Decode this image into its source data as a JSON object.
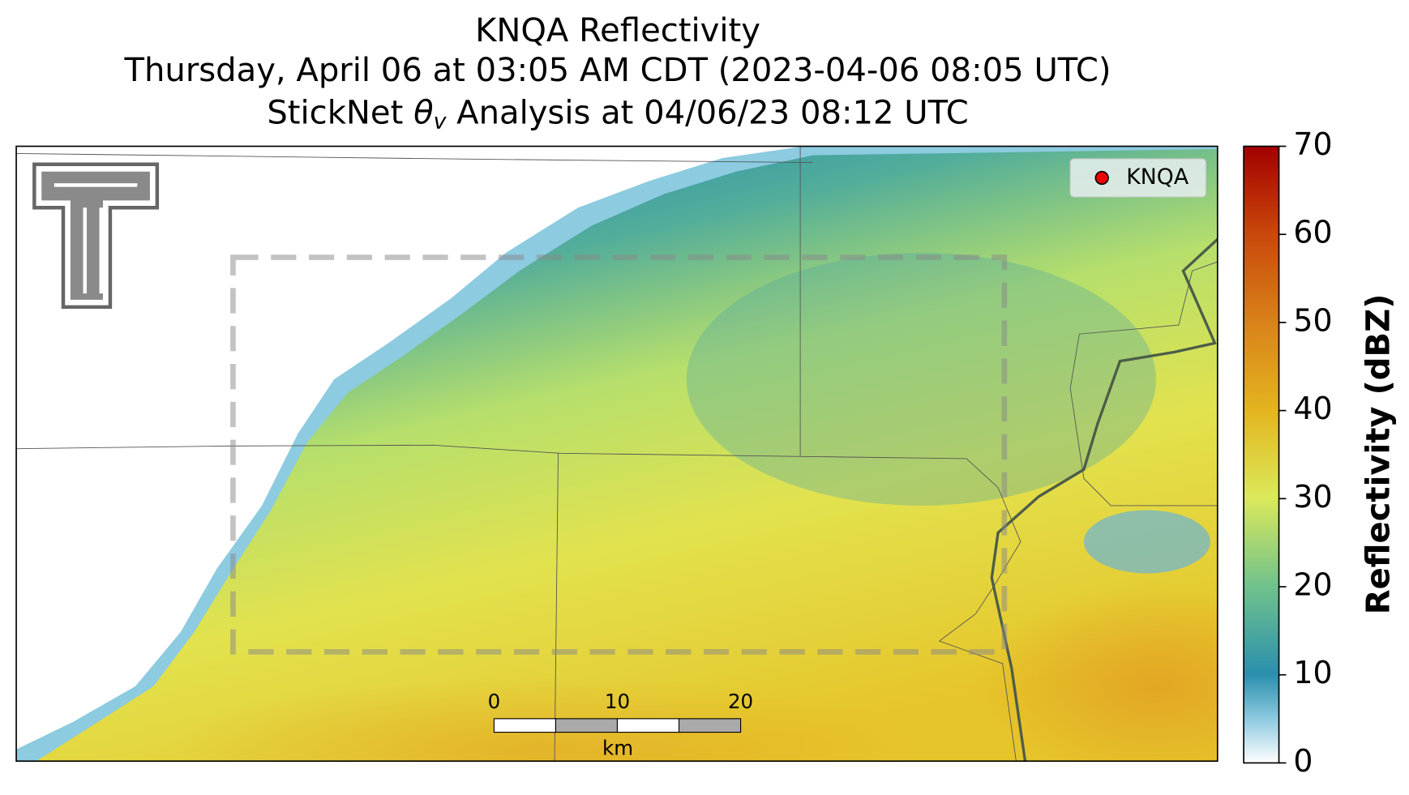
{
  "title": {
    "line1": "KNQA Reflectivity",
    "line2": "Thursday, April 06 at 03:05 AM CDT (2023-04-06 08:05 UTC)",
    "line3_prefix": "StickNet",
    "line3_symbol": "θ",
    "line3_subscript": "v",
    "line3_suffix": "Analysis at 04/06/23 08:12 UTC"
  },
  "legend": {
    "label": "KNQA"
  },
  "colorbar": {
    "label": "Reflectivity (dBZ)",
    "lim": [
      0,
      70
    ],
    "ticks": [
      0,
      10,
      20,
      30,
      40,
      50,
      60,
      70
    ]
  },
  "scale_bar": {
    "ticks": [
      0,
      10,
      20
    ],
    "unit": "km"
  }
}
